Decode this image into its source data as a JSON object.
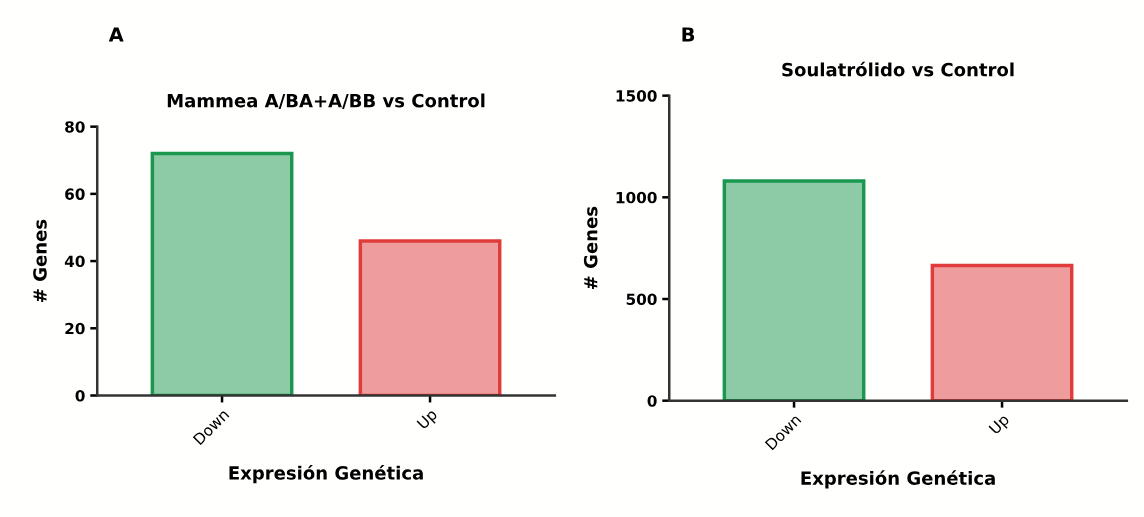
{
  "chart_data": [
    {
      "type": "bar",
      "title": "Mammea A/BA+A/BB vs Control",
      "xlabel": "Expresión Genética",
      "ylabel": "# Genes",
      "annotations": [
        "A"
      ],
      "categories": [
        "Down",
        "Up"
      ],
      "values": [
        72,
        46
      ],
      "colors": [
        "#1a9850",
        "#e03c3c"
      ],
      "ylim": [
        0,
        80
      ],
      "yticks": [
        0,
        20,
        40,
        60,
        80
      ],
      "grid": false,
      "legend": false
    },
    {
      "type": "bar",
      "title": "Soulatrólido vs Control",
      "xlabel": "Expresión Genética",
      "ylabel": "# Genes",
      "annotations": [
        "B"
      ],
      "categories": [
        "Down",
        "Up"
      ],
      "values": [
        1080,
        665
      ],
      "colors": [
        "#1a9850",
        "#e03c3c"
      ],
      "ylim": [
        0,
        1500
      ],
      "yticks": [
        0,
        500,
        1000,
        1500
      ],
      "grid": false,
      "legend": false
    }
  ]
}
